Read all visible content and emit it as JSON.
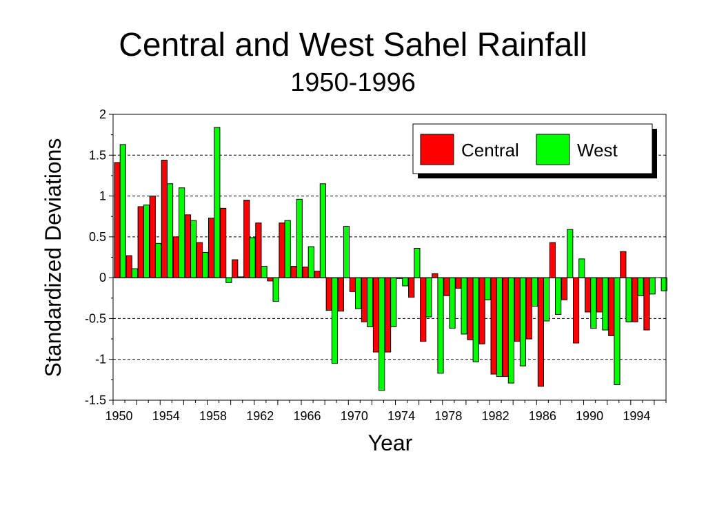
{
  "chart_data": {
    "type": "bar",
    "title": "Central and West Sahel Rainfall",
    "subtitle": "1950-1996",
    "xlabel": "Year",
    "ylabel": "Standardized Deviations",
    "ylim": [
      -1.5,
      2
    ],
    "yticks": [
      2,
      1.5,
      1,
      0.5,
      0,
      -0.5,
      -1,
      -1.5
    ],
    "ytick_labels": [
      "2",
      "1.5",
      "1",
      "0.5",
      "0",
      "-0.5",
      "-1",
      "-1.5"
    ],
    "xtick_labels": [
      "1950",
      "1954",
      "1958",
      "1962",
      "1966",
      "1970",
      "1974",
      "1978",
      "1982",
      "1986",
      "1990",
      "1994"
    ],
    "grid": "horizontal dashed",
    "legend_position": "top-right",
    "categories": [
      1950,
      1951,
      1952,
      1953,
      1954,
      1955,
      1956,
      1957,
      1958,
      1959,
      1960,
      1961,
      1962,
      1963,
      1964,
      1965,
      1966,
      1967,
      1968,
      1969,
      1970,
      1971,
      1972,
      1973,
      1974,
      1975,
      1976,
      1977,
      1978,
      1979,
      1980,
      1981,
      1982,
      1983,
      1984,
      1985,
      1986,
      1987,
      1988,
      1989,
      1990,
      1991,
      1992,
      1993,
      1994,
      1995,
      1996
    ],
    "series": [
      {
        "name": "Central",
        "color": "#ff0000",
        "values": [
          1.41,
          0.27,
          0.87,
          1.0,
          1.44,
          0.5,
          0.77,
          0.43,
          0.73,
          0.85,
          0.22,
          0.95,
          0.67,
          -0.04,
          0.67,
          0.14,
          0.13,
          0.08,
          -0.4,
          -0.41,
          -0.17,
          -0.54,
          -0.91,
          -0.91,
          -0.01,
          -0.24,
          -0.78,
          0.05,
          -0.22,
          -0.13,
          -0.76,
          -0.81,
          -1.18,
          -1.21,
          -0.78,
          -0.75,
          -1.33,
          0.43,
          -0.27,
          -0.8,
          -0.42,
          -0.42,
          -0.71,
          0.32,
          -0.54,
          -0.64,
          0.0
        ]
      },
      {
        "name": "West",
        "color": "#00ff00",
        "values": [
          1.63,
          0.11,
          0.89,
          0.42,
          1.15,
          1.1,
          0.7,
          0.31,
          1.84,
          -0.06,
          0.01,
          0.49,
          0.14,
          -0.29,
          0.7,
          0.96,
          0.38,
          1.15,
          -1.05,
          0.63,
          -0.38,
          -0.6,
          -1.38,
          -0.6,
          -0.1,
          0.36,
          -0.48,
          -1.17,
          -0.62,
          -0.69,
          -1.03,
          -0.27,
          -1.21,
          -1.29,
          -1.08,
          -0.35,
          -0.53,
          -0.45,
          0.59,
          0.23,
          -0.62,
          -0.64,
          -1.31,
          -0.54,
          -0.22,
          -0.2,
          -0.16
        ]
      }
    ]
  }
}
